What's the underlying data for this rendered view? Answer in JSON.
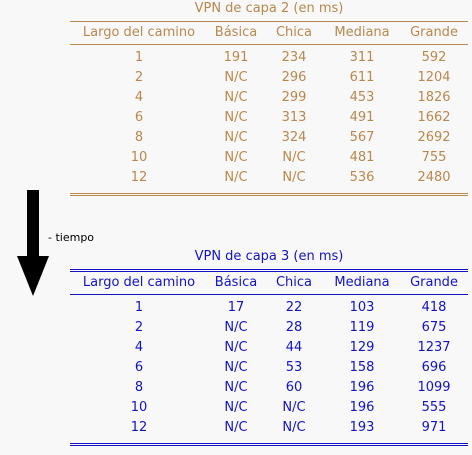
{
  "time_label": "- tiempo",
  "columns": [
    "Largo del camino",
    "Básica",
    "Chica",
    "Mediana",
    "Grande"
  ],
  "tables": [
    {
      "caption": "VPN de capa 2 (en ms)",
      "color": "#b9884d",
      "rows": [
        [
          "1",
          "191",
          "234",
          "311",
          "592"
        ],
        [
          "2",
          "N/C",
          "296",
          "611",
          "1204"
        ],
        [
          "4",
          "N/C",
          "299",
          "453",
          "1826"
        ],
        [
          "6",
          "N/C",
          "313",
          "491",
          "1662"
        ],
        [
          "8",
          "N/C",
          "324",
          "567",
          "2692"
        ],
        [
          "10",
          "N/C",
          "N/C",
          "481",
          "755"
        ],
        [
          "12",
          "N/C",
          "N/C",
          "536",
          "2480"
        ]
      ]
    },
    {
      "caption": "VPN de capa 3 (en ms)",
      "color": "#1313c4",
      "rows": [
        [
          "1",
          "17",
          "22",
          "103",
          "418"
        ],
        [
          "2",
          "N/C",
          "28",
          "119",
          "675"
        ],
        [
          "4",
          "N/C",
          "44",
          "129",
          "1237"
        ],
        [
          "6",
          "N/C",
          "53",
          "158",
          "696"
        ],
        [
          "8",
          "N/C",
          "60",
          "196",
          "1099"
        ],
        [
          "10",
          "N/C",
          "N/C",
          "196",
          "555"
        ],
        [
          "12",
          "N/C",
          "N/C",
          "193",
          "971"
        ]
      ]
    }
  ]
}
